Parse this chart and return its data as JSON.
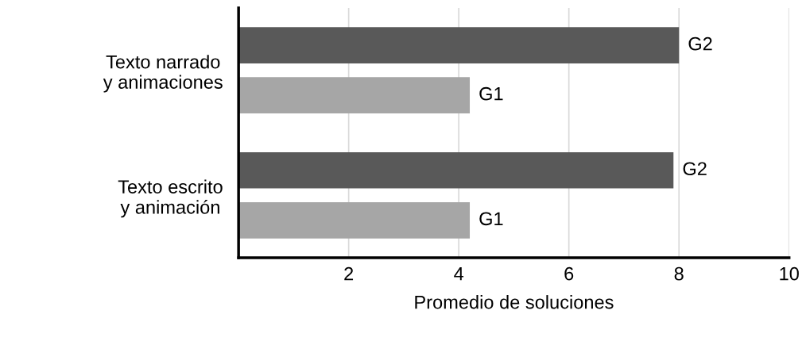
{
  "chart_data": {
    "type": "bar",
    "orientation": "horizontal",
    "xlabel": "Promedio de soluciones",
    "categories": [
      "Texto narrado\ny animaciones",
      "Texto escrito\ny animación"
    ],
    "series": [
      {
        "name": "G2",
        "color": "#595959",
        "values": [
          8.0,
          7.9
        ]
      },
      {
        "name": "G1",
        "color": "#a6a6a6",
        "values": [
          4.2,
          4.2
        ]
      }
    ],
    "xlim": [
      0,
      10
    ],
    "xticks": [
      2,
      4,
      6,
      8,
      10
    ],
    "grid": "x",
    "legend": false
  }
}
